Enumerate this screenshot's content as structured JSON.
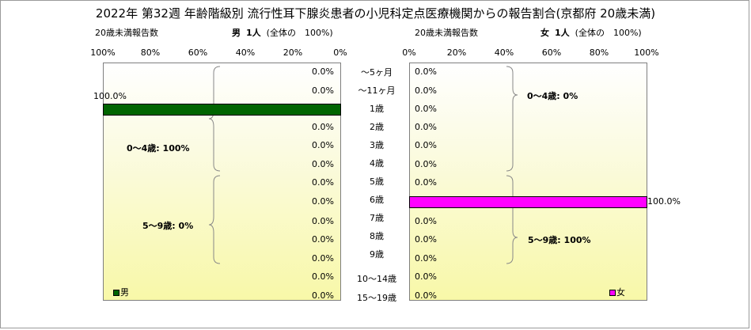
{
  "title": "2022年 第32週 年齢階級別 流行性耳下腺炎患者の小児科定点医療機関からの報告割合(京都府 20歳未満)",
  "male_header": {
    "left": "20歳未満報告数",
    "sex": "男",
    "count": "1人",
    "share": "(全体の　100%)"
  },
  "female_header": {
    "left": "20歳未満報告数",
    "sex": "女",
    "count": "1人",
    "share": "(全体の　100%)"
  },
  "male_ticks": [
    "100%",
    "80%",
    "60%",
    "40%",
    "20%",
    "0%"
  ],
  "female_ticks": [
    "0%",
    "20%",
    "40%",
    "60%",
    "80%",
    "100%"
  ],
  "legend": {
    "male": "男",
    "female": "女"
  },
  "colors": {
    "male": "#006400",
    "female": "#ff00ff"
  },
  "brackets": {
    "male": [
      {
        "label": "0～4歳: 100%"
      },
      {
        "label": "5～9歳: 0%"
      }
    ],
    "female": [
      {
        "label": "0～4歳: 0%"
      },
      {
        "label": "5～9歳: 100%"
      }
    ]
  },
  "chart_data": {
    "type": "bar",
    "orientation": "horizontal",
    "categories": [
      "～5ヶ月",
      "～11ヶ月",
      "1歳",
      "2歳",
      "3歳",
      "4歳",
      "5歳",
      "6歳",
      "7歳",
      "8歳",
      "9歳",
      "10～14歳",
      "15～19歳"
    ],
    "series": [
      {
        "name": "男",
        "values": [
          0,
          0,
          100,
          0,
          0,
          0,
          0,
          0,
          0,
          0,
          0,
          0,
          0
        ],
        "labels": [
          "0.0%",
          "0.0%",
          "100.0%",
          "0.0%",
          "0.0%",
          "0.0%",
          "0.0%",
          "0.0%",
          "0.0%",
          "0.0%",
          "0.0%",
          "0.0%",
          "0.0%"
        ]
      },
      {
        "name": "女",
        "values": [
          0,
          0,
          0,
          0,
          0,
          0,
          0,
          100,
          0,
          0,
          0,
          0,
          0
        ],
        "labels": [
          "0.0%",
          "0.0%",
          "0.0%",
          "0.0%",
          "0.0%",
          "0.0%",
          "0.0%",
          "100.0%",
          "0.0%",
          "0.0%",
          "0.0%",
          "0.0%",
          "0.0%"
        ]
      }
    ],
    "xlim": [
      0,
      100
    ],
    "xunit": "%"
  }
}
